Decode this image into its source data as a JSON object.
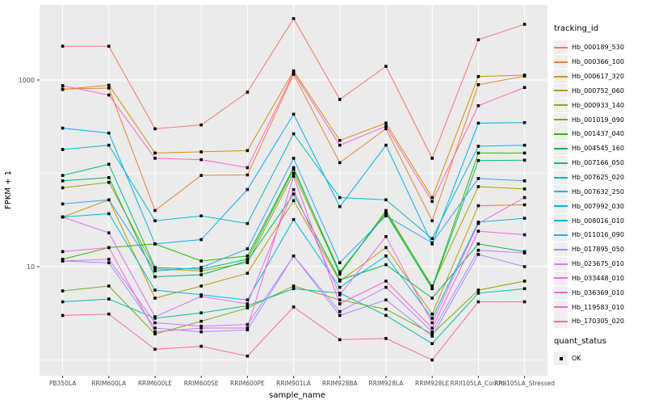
{
  "chart_data": {
    "type": "line",
    "xlabel": "sample_name",
    "ylabel": "FPKM + 1",
    "y_scale": "log10",
    "y_tick_labels": [
      "10",
      "1000"
    ],
    "y_ticks": [
      10,
      1000
    ],
    "y_minor_gridlines": [
      1,
      100
    ],
    "ylim": [
      0.7,
      6400
    ],
    "panel_bg": "#EBEBEB",
    "grid_color": "#FFFFFF",
    "point_symbol": "black-square",
    "legend_title": "tracking_id",
    "legend2_title": "quant_status",
    "legend2_items": [
      {
        "label": "OK",
        "symbol": "black-square"
      }
    ],
    "categories": [
      "PB350LA",
      "RRIM600LA",
      "RRIM600LE",
      "RRIM600SE",
      "RRIM600PE",
      "RRIM901LA",
      "RRIM928BA",
      "RRIM928LA",
      "RRIM928LE",
      "RRII105LA_Control",
      "RRII105LA_Stressed"
    ],
    "series": [
      {
        "name": "Hb_000189_530",
        "color": "#F8766D",
        "values": [
          2300,
          2300,
          300,
          330,
          740,
          4550,
          620,
          1400,
          145,
          2700,
          3950
        ]
      },
      {
        "name": "Hb_000366_100",
        "color": "#EA8331",
        "values": [
          800,
          820,
          40,
          95,
          96,
          1150,
          130,
          300,
          31,
          890,
          1100
        ]
      },
      {
        "name": "Hb_000617_320",
        "color": "#D89000",
        "values": [
          790,
          880,
          165,
          170,
          175,
          1250,
          225,
          345,
          55,
          1090,
          1130
        ]
      },
      {
        "name": "Hb_000752_060",
        "color": "#C09B00",
        "values": [
          34,
          52,
          4.6,
          6.2,
          8.5,
          51,
          7,
          16,
          3.1,
          45,
          46
        ]
      },
      {
        "name": "Hb_000933_140",
        "color": "#A3A500",
        "values": [
          70,
          80,
          9.5,
          9,
          11,
          100,
          8.5,
          38,
          6.2,
          72,
          68
        ]
      },
      {
        "name": "Hb_001019_090",
        "color": "#7CAE00",
        "values": [
          5.5,
          6.2,
          1.9,
          2.6,
          3.6,
          6.2,
          4.4,
          3.5,
          1.9,
          5.6,
          7
        ]
      },
      {
        "name": "Hb_001437_040",
        "color": "#39B600",
        "values": [
          12,
          16,
          17.5,
          11.5,
          13,
          115,
          8.3,
          40,
          6,
          165,
          165
        ]
      },
      {
        "name": "Hb_004545_160",
        "color": "#00BB4E",
        "values": [
          83,
          90,
          7.8,
          8.2,
          11.5,
          60,
          7.2,
          10.5,
          4.6,
          17.5,
          14.5
        ]
      },
      {
        "name": "Hb_007166_050",
        "color": "#00BF7D",
        "values": [
          95,
          125,
          9.8,
          9.4,
          12,
          110,
          8.8,
          37,
          5.8,
          137,
          138
        ]
      },
      {
        "name": "Hb_007625_020",
        "color": "#00C1A3",
        "values": [
          4.2,
          4.5,
          2.8,
          3.2,
          3.8,
          5.8,
          5.2,
          3,
          1.5,
          5.2,
          5.8
        ]
      },
      {
        "name": "Hb_007632_250",
        "color": "#00BFC4",
        "values": [
          180,
          200,
          31,
          35,
          29,
          265,
          55,
          52,
          20,
          195,
          200
        ]
      },
      {
        "name": "Hb_007992_030",
        "color": "#00BAE0",
        "values": [
          34,
          37,
          5.6,
          5,
          4.4,
          32,
          6,
          13,
          2.8,
          30,
          33
        ]
      },
      {
        "name": "Hb_008016_010",
        "color": "#00B0F6",
        "values": [
          305,
          270,
          17.5,
          19.5,
          67,
          430,
          44,
          200,
          17.5,
          345,
          350
        ]
      },
      {
        "name": "Hb_011016_090",
        "color": "#35A2FF",
        "values": [
          47,
          52,
          9,
          9.8,
          15.5,
          145,
          11,
          35,
          18,
          88,
          83
        ]
      },
      {
        "name": "Hb_017895_050",
        "color": "#9590FF",
        "values": [
          11.5,
          11,
          2.2,
          2,
          2.1,
          13,
          3,
          4.4,
          1.8,
          13.5,
          10
        ]
      },
      {
        "name": "Hb_023675_010",
        "color": "#C77CFF",
        "values": [
          11.5,
          12,
          2.5,
          2.3,
          2.4,
          13,
          3.3,
          6,
          2,
          15,
          14
        ]
      },
      {
        "name": "Hb_033448_010",
        "color": "#E76BF3",
        "values": [
          34,
          23,
          2.9,
          4.8,
          4,
          67,
          5,
          21,
          2.5,
          29,
          55
        ]
      },
      {
        "name": "Hb_036369_010",
        "color": "#FA62DB",
        "values": [
          14.5,
          16,
          2,
          2.2,
          2.2,
          93,
          4,
          7,
          2.2,
          24,
          22
        ]
      },
      {
        "name": "Hb_119583_010",
        "color": "#FF61CC",
        "values": [
          870,
          690,
          145,
          140,
          115,
          1200,
          200,
          320,
          50,
          530,
          830
        ]
      },
      {
        "name": "Hb_170305_020",
        "color": "#FF6A98",
        "values": [
          3,
          3.1,
          1.3,
          1.4,
          1.1,
          3.7,
          1.65,
          1.7,
          1,
          4.2,
          4.2
        ]
      }
    ]
  }
}
